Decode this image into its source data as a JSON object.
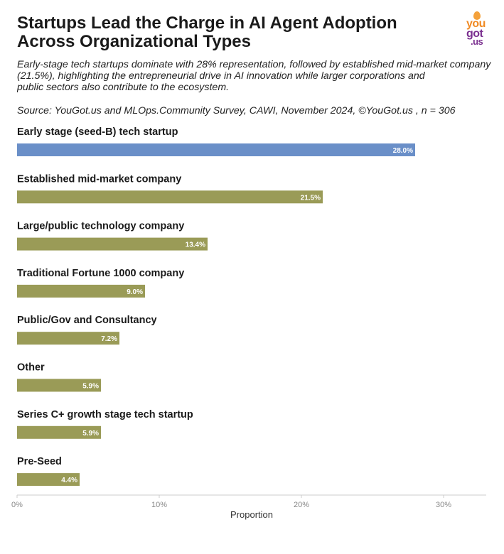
{
  "header": {
    "title": "Startups Lead the Charge in AI Agent Adoption Across Organizational Types",
    "subtitle_lines": [
      "Early-stage tech startups dominate with 28% representation, followed by established mid-market company",
      "(21.5%), highlighting the entrepreneurial drive in AI innovation while larger corporations and",
      "public sectors also contribute to the ecosystem."
    ],
    "source": "Source: YouGot.us and MLOps.Community Survey, CAWI, November 2024, ©YouGot.us , n = 306"
  },
  "logo": {
    "line1": "you",
    "line2": "got",
    "line3": ".us"
  },
  "colors": {
    "highlight": "#6a8fc8",
    "default": "#9a9b57",
    "label_inside": "#ffffff",
    "label_outside": "#1a1a1a",
    "axis": "#cccccc",
    "tick_text": "#888888"
  },
  "chart_data": {
    "type": "bar",
    "orientation": "horizontal",
    "xlabel": "Proportion",
    "xlim": [
      0,
      0.33
    ],
    "ticks": [
      0,
      0.1,
      0.2,
      0.3
    ],
    "tick_labels": [
      "0%",
      "10%",
      "20%",
      "30%"
    ],
    "categories": [
      "Early stage (seed-B) tech startup",
      "Established mid-market company",
      "Large/public technology company",
      "Traditional Fortune 1000 company",
      "Public/Gov and Consultancy",
      "Other",
      "Series C+ growth stage tech startup",
      "Pre-Seed"
    ],
    "values": [
      0.28,
      0.215,
      0.134,
      0.09,
      0.072,
      0.059,
      0.059,
      0.044
    ],
    "value_labels": [
      "28.0%",
      "21.5%",
      "13.4%",
      "9.0%",
      "7.2%",
      "5.9%",
      "5.9%",
      "4.4%"
    ],
    "highlight_index": 0
  }
}
